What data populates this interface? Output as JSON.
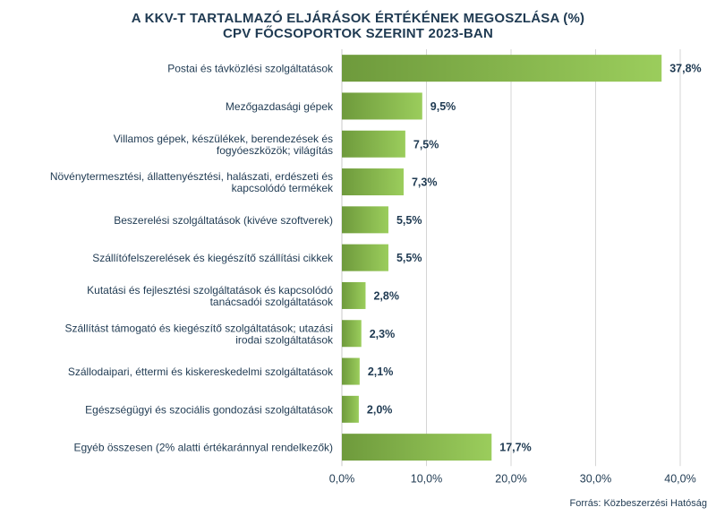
{
  "chart_data": {
    "type": "bar",
    "orientation": "horizontal",
    "title_line1": "A KKV-T TARTALMAZÓ ELJÁRÁSOK ÉRTÉKÉNEK MEGOSZLÁSA (%)",
    "title_line2": "CPV FŐCSOPORTOK SZERINT 2023-BAN",
    "categories": [
      [
        "Postai és távközlési szolgáltatások"
      ],
      [
        "Mezőgazdasági gépek"
      ],
      [
        "Villamos gépek, készülékek, berendezések és",
        "fogyóeszközök; világítás"
      ],
      [
        "Növénytermesztési, állattenyésztési, halászati, erdészeti és",
        "kapcsolódó termékek"
      ],
      [
        "Beszerelési szolgáltatások (kivéve szoftverek)"
      ],
      [
        "Szállítófelszerelések és kiegészítő szállítási cikkek"
      ],
      [
        "Kutatási és fejlesztési szolgáltatások és kapcsolódó",
        "tanácsadói szolgáltatások"
      ],
      [
        "Szállítást támogató és kiegészítő szolgáltatások; utazási",
        "irodai szolgáltatások"
      ],
      [
        "Szállodaipari, éttermi és kiskereskedelmi szolgáltatások"
      ],
      [
        "Egészségügyi és szociális gondozási szolgáltatások"
      ],
      [
        "Egyéb összesen (2% alatti értékaránnyal rendelkezők)"
      ]
    ],
    "values": [
      37.8,
      9.5,
      7.5,
      7.3,
      5.5,
      5.5,
      2.8,
      2.3,
      2.1,
      2.0,
      17.7
    ],
    "value_labels": [
      "37,8%",
      "9,5%",
      "7,5%",
      "7,3%",
      "5,5%",
      "5,5%",
      "2,8%",
      "2,3%",
      "2,1%",
      "2,0%",
      "17,7%"
    ],
    "xlim": [
      0,
      40
    ],
    "xticks": [
      0,
      10,
      20,
      30,
      40
    ],
    "xtick_labels": [
      "0,0%",
      "10,0%",
      "20,0%",
      "30,0%",
      "40,0%"
    ],
    "grid": "vertical",
    "colors": {
      "bar_dark": "#6e9a3c",
      "bar_light": "#9bcd5c",
      "text": "#1f3a52",
      "grid": "#d5d5d5"
    }
  },
  "source": "Forrás: Közbeszerzési Hatóság"
}
